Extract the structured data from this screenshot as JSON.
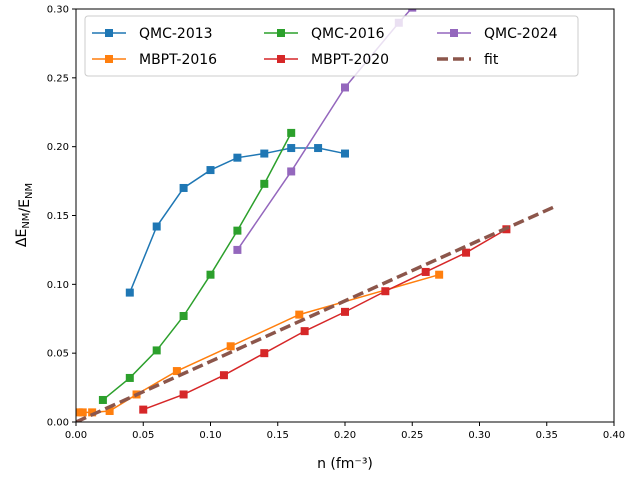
{
  "chart_data": {
    "type": "line",
    "xlabel": "n (fm⁻³)",
    "ylabel": "ΔE_NM/E_NM",
    "xlim": [
      0.0,
      0.4
    ],
    "ylim": [
      0.0,
      0.3
    ],
    "xticks": [
      "0.00",
      "0.05",
      "0.10",
      "0.15",
      "0.20",
      "0.25",
      "0.30",
      "0.35",
      "0.40"
    ],
    "yticks": [
      "0.00",
      "0.05",
      "0.10",
      "0.15",
      "0.20",
      "0.25",
      "0.30"
    ],
    "grid": false,
    "legend_placement": "top",
    "series": [
      {
        "name": "QMC-2013",
        "color": "#1f77b4",
        "marker": "square",
        "style": "solid",
        "points": [
          [
            0.04,
            0.094
          ],
          [
            0.06,
            0.142
          ],
          [
            0.08,
            0.17
          ],
          [
            0.1,
            0.183
          ],
          [
            0.12,
            0.192
          ],
          [
            0.14,
            0.195
          ],
          [
            0.16,
            0.199
          ],
          [
            0.18,
            0.199
          ],
          [
            0.2,
            0.195
          ]
        ]
      },
      {
        "name": "MBPT-2016",
        "color": "#ff7f0e",
        "marker": "square",
        "style": "solid",
        "points": [
          [
            0.002,
            0.007
          ],
          [
            0.005,
            0.007
          ],
          [
            0.012,
            0.007
          ],
          [
            0.025,
            0.008
          ],
          [
            0.045,
            0.02
          ],
          [
            0.075,
            0.037
          ],
          [
            0.115,
            0.055
          ],
          [
            0.166,
            0.078
          ],
          [
            0.27,
            0.107
          ]
        ]
      },
      {
        "name": "QMC-2016",
        "color": "#2ca02c",
        "marker": "square",
        "style": "solid",
        "points": [
          [
            0.02,
            0.016
          ],
          [
            0.04,
            0.032
          ],
          [
            0.06,
            0.052
          ],
          [
            0.08,
            0.077
          ],
          [
            0.1,
            0.107
          ],
          [
            0.12,
            0.139
          ],
          [
            0.14,
            0.173
          ],
          [
            0.16,
            0.21
          ]
        ]
      },
      {
        "name": "MBPT-2020",
        "color": "#d62728",
        "marker": "square",
        "style": "solid",
        "points": [
          [
            0.05,
            0.009
          ],
          [
            0.08,
            0.02
          ],
          [
            0.11,
            0.034
          ],
          [
            0.14,
            0.05
          ],
          [
            0.17,
            0.066
          ],
          [
            0.2,
            0.08
          ],
          [
            0.23,
            0.095
          ],
          [
            0.26,
            0.109
          ],
          [
            0.29,
            0.123
          ],
          [
            0.32,
            0.14
          ]
        ]
      },
      {
        "name": "QMC-2024",
        "color": "#9467bd",
        "marker": "square",
        "style": "solid",
        "points": [
          [
            0.12,
            0.125
          ],
          [
            0.16,
            0.182
          ],
          [
            0.2,
            0.243
          ],
          [
            0.24,
            0.29
          ],
          [
            0.25,
            0.301
          ]
        ]
      },
      {
        "name": "fit",
        "color": "#8c564b",
        "marker": "none",
        "style": "dashed",
        "points": [
          [
            0.0,
            0.0
          ],
          [
            0.05,
            0.022
          ],
          [
            0.1,
            0.044
          ],
          [
            0.15,
            0.066
          ],
          [
            0.2,
            0.088
          ],
          [
            0.25,
            0.11
          ],
          [
            0.3,
            0.132
          ],
          [
            0.355,
            0.156
          ]
        ]
      }
    ]
  }
}
